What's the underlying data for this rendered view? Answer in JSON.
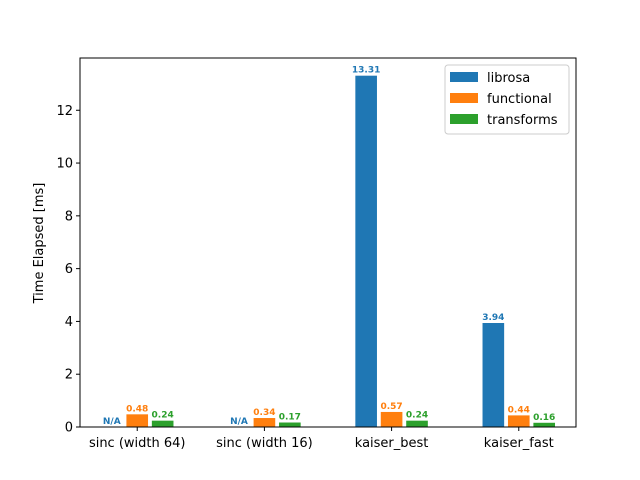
{
  "chart_data": {
    "type": "bar",
    "title": "",
    "xlabel": "",
    "ylabel": "Time Elapsed [ms]",
    "categories": [
      "sinc (width 64)",
      "sinc (width 16)",
      "kaiser_best",
      "kaiser_fast"
    ],
    "series": [
      {
        "name": "librosa",
        "color": "#1f77b4",
        "values": [
          null,
          null,
          13.31,
          3.94
        ],
        "labels": [
          "N/A",
          "N/A",
          "13.31",
          "3.94"
        ]
      },
      {
        "name": "functional",
        "color": "#ff7f0e",
        "values": [
          0.48,
          0.34,
          0.57,
          0.44
        ],
        "labels": [
          "0.48",
          "0.34",
          "0.57",
          "0.44"
        ]
      },
      {
        "name": "transforms",
        "color": "#2ca02c",
        "values": [
          0.24,
          0.17,
          0.24,
          0.16
        ],
        "labels": [
          "0.24",
          "0.17",
          "0.24",
          "0.16"
        ]
      }
    ],
    "ylim": [
      0,
      13.98
    ],
    "yticks": [
      0,
      2,
      4,
      6,
      8,
      10,
      12
    ],
    "grid": false,
    "legend_position": "top-right"
  }
}
